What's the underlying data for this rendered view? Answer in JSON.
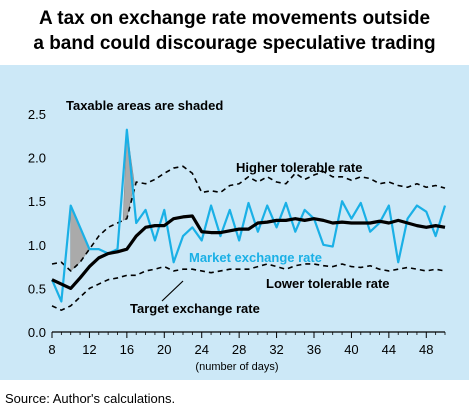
{
  "title_line1": "A tax on exchange rate movements outside",
  "title_line2": "a band could discourage speculative trading",
  "source": "Source: Author's calculations.",
  "colors": {
    "panel": "#cce8f7",
    "market": "#1ab0e6",
    "target": "#000000",
    "band": "#000000",
    "shade": "#aaaaaa"
  },
  "chart_data": {
    "type": "line",
    "xlim": [
      8,
      50
    ],
    "ylim": [
      0,
      2.5
    ],
    "xticks": [
      8,
      12,
      16,
      20,
      24,
      28,
      32,
      36,
      40,
      44,
      48
    ],
    "yticks": [
      "0.0",
      "0.5",
      "1.0",
      "1.5",
      "2.0",
      "2.5"
    ],
    "xlabel": "(number of days)",
    "annotations": {
      "shaded_note": "Taxable areas are shaded",
      "higher": "Higher tolerable rate",
      "market": "Market exchange rate",
      "lower": "Lower tolerable rate",
      "target": "Target exchange rate"
    },
    "series": [
      {
        "name": "Target exchange rate",
        "x": [
          8,
          9,
          10,
          11,
          12,
          13,
          14,
          15,
          16,
          17,
          18,
          19,
          20,
          21,
          22,
          23,
          24,
          25,
          26,
          27,
          28,
          29,
          30,
          31,
          32,
          33,
          34,
          35,
          36,
          37,
          38,
          39,
          40,
          41,
          42,
          43,
          44,
          45,
          46,
          47,
          48,
          49,
          50
        ],
        "values": [
          0.6,
          0.55,
          0.5,
          0.62,
          0.75,
          0.85,
          0.9,
          0.92,
          0.95,
          1.1,
          1.2,
          1.22,
          1.22,
          1.3,
          1.32,
          1.33,
          1.15,
          1.14,
          1.14,
          1.16,
          1.18,
          1.18,
          1.25,
          1.26,
          1.28,
          1.28,
          1.3,
          1.28,
          1.3,
          1.28,
          1.25,
          1.26,
          1.25,
          1.25,
          1.25,
          1.27,
          1.25,
          1.28,
          1.25,
          1.22,
          1.2,
          1.22,
          1.2
        ]
      },
      {
        "name": "Market exchange rate",
        "x": [
          8,
          9,
          10,
          11,
          12,
          13,
          14,
          15,
          16,
          17,
          18,
          19,
          20,
          21,
          22,
          23,
          24,
          25,
          26,
          27,
          28,
          29,
          30,
          31,
          32,
          33,
          34,
          35,
          36,
          37,
          38,
          39,
          40,
          41,
          42,
          43,
          44,
          45,
          46,
          47,
          48,
          49,
          50
        ],
        "values": [
          0.6,
          0.35,
          1.45,
          1.2,
          0.95,
          0.95,
          0.9,
          0.95,
          2.32,
          1.25,
          1.4,
          1.05,
          1.4,
          0.8,
          1.1,
          1.2,
          1.05,
          1.45,
          1.1,
          1.4,
          1.05,
          1.48,
          1.15,
          1.45,
          1.2,
          1.48,
          1.15,
          1.4,
          1.3,
          1.0,
          0.98,
          1.5,
          1.3,
          1.48,
          1.15,
          1.25,
          1.45,
          0.8,
          1.3,
          1.45,
          1.38,
          1.1,
          1.45
        ]
      },
      {
        "name": "Higher tolerable rate",
        "x": [
          8,
          9,
          10,
          11,
          12,
          13,
          14,
          15,
          16,
          17,
          18,
          19,
          20,
          21,
          22,
          23,
          24,
          25,
          26,
          27,
          28,
          29,
          30,
          31,
          32,
          33,
          34,
          35,
          36,
          37,
          38,
          39,
          40,
          41,
          42,
          43,
          44,
          45,
          46,
          47,
          48,
          49,
          50
        ],
        "values": [
          0.78,
          0.8,
          0.7,
          0.8,
          0.95,
          1.1,
          1.2,
          1.25,
          1.3,
          1.72,
          1.7,
          1.75,
          1.82,
          1.88,
          1.9,
          1.82,
          1.6,
          1.62,
          1.6,
          1.68,
          1.7,
          1.78,
          1.72,
          1.78,
          1.72,
          1.7,
          1.82,
          1.75,
          1.8,
          1.84,
          1.78,
          1.78,
          1.74,
          1.78,
          1.76,
          1.7,
          1.72,
          1.68,
          1.66,
          1.7,
          1.66,
          1.68,
          1.65
        ]
      },
      {
        "name": "Lower tolerable rate",
        "x": [
          8,
          9,
          10,
          11,
          12,
          13,
          14,
          15,
          16,
          17,
          18,
          19,
          20,
          21,
          22,
          23,
          24,
          25,
          26,
          27,
          28,
          29,
          30,
          31,
          32,
          33,
          34,
          35,
          36,
          37,
          38,
          39,
          40,
          41,
          42,
          43,
          44,
          45,
          46,
          47,
          48,
          49,
          50
        ],
        "values": [
          0.3,
          0.25,
          0.3,
          0.4,
          0.5,
          0.55,
          0.6,
          0.62,
          0.65,
          0.65,
          0.7,
          0.72,
          0.75,
          0.7,
          0.72,
          0.72,
          0.7,
          0.68,
          0.7,
          0.72,
          0.72,
          0.72,
          0.75,
          0.78,
          0.75,
          0.72,
          0.76,
          0.78,
          0.78,
          0.76,
          0.75,
          0.78,
          0.75,
          0.74,
          0.76,
          0.72,
          0.7,
          0.72,
          0.74,
          0.72,
          0.7,
          0.72,
          0.7
        ]
      }
    ],
    "shaded_areas": [
      {
        "x": [
          10,
          11,
          12
        ],
        "upper": [
          1.45,
          1.2,
          0.95
        ],
        "lower": [
          0.7,
          0.8,
          0.95
        ]
      },
      {
        "x": [
          15.6,
          16,
          16.8
        ],
        "upper": [
          1.28,
          2.32,
          1.71
        ],
        "lower": [
          1.28,
          1.3,
          1.71
        ]
      }
    ]
  }
}
